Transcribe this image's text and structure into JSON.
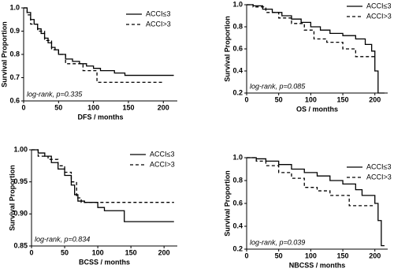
{
  "chart_data": [
    {
      "type": "step",
      "x_label": "DFS / months",
      "y_label": "Survival Proportion",
      "annotation": "log-rank, p=0.335",
      "xlim": [
        0,
        220
      ],
      "xticks": [
        0,
        50,
        100,
        150,
        200
      ],
      "ylim": [
        0.6,
        1.0
      ],
      "yticks": [
        0.6,
        0.7,
        0.8,
        0.9,
        {
          "value": 1.0,
          "label": "1.0"
        }
      ],
      "series": [
        {
          "name": "ACCI≤3",
          "color": "#000000",
          "dashed": false,
          "x": [
            0,
            5,
            10,
            15,
            20,
            25,
            30,
            35,
            40,
            45,
            50,
            60,
            70,
            80,
            90,
            100,
            110,
            130,
            145,
            215
          ],
          "values": [
            1.0,
            0.98,
            0.95,
            0.93,
            0.91,
            0.89,
            0.87,
            0.85,
            0.83,
            0.82,
            0.8,
            0.78,
            0.77,
            0.76,
            0.75,
            0.74,
            0.73,
            0.72,
            0.71,
            0.71
          ]
        },
        {
          "name": "ACCI>3",
          "color": "#000000",
          "dashed": true,
          "x": [
            0,
            5,
            10,
            20,
            30,
            40,
            50,
            60,
            75,
            85,
            105,
            200
          ],
          "values": [
            1.0,
            0.97,
            0.93,
            0.9,
            0.86,
            0.82,
            0.8,
            0.76,
            0.76,
            0.73,
            0.68,
            0.68
          ]
        }
      ]
    },
    {
      "type": "step",
      "x_label": "OS / months",
      "y_label": "Survival Proportion",
      "annotation": "log-rank, p=0.085",
      "xlim": [
        0,
        220
      ],
      "xticks": [
        0,
        50,
        100,
        150,
        200
      ],
      "ylim": [
        0.2,
        1.0
      ],
      "yticks": [
        0.2,
        0.4,
        0.6,
        0.8,
        {
          "value": 1.0,
          "label": "1.0"
        }
      ],
      "series": [
        {
          "name": "ACCI≤3",
          "color": "#000000",
          "dashed": false,
          "x": [
            0,
            10,
            25,
            40,
            55,
            70,
            85,
            100,
            115,
            130,
            150,
            170,
            185,
            195,
            200,
            205,
            215
          ],
          "values": [
            1.0,
            0.99,
            0.96,
            0.93,
            0.9,
            0.87,
            0.84,
            0.8,
            0.77,
            0.74,
            0.72,
            0.69,
            0.64,
            0.58,
            0.4,
            0.2,
            0.2
          ]
        },
        {
          "name": "ACCI>3",
          "color": "#000000",
          "dashed": true,
          "x": [
            0,
            10,
            30,
            50,
            70,
            90,
            105,
            125,
            150,
            170,
            200
          ],
          "values": [
            1.0,
            0.98,
            0.93,
            0.88,
            0.83,
            0.77,
            0.69,
            0.66,
            0.6,
            0.53,
            0.53
          ]
        }
      ]
    },
    {
      "type": "step",
      "x_label": "BCSS / months",
      "y_label": "Survival Proportion",
      "annotation": "log-rank, p=0.834",
      "xlim": [
        0,
        220
      ],
      "xticks": [
        0,
        50,
        100,
        150,
        200
      ],
      "ylim": [
        0.85,
        1.0
      ],
      "yticks": [
        {
          "value": 0.85,
          "label": "0.85"
        },
        {
          "value": 0.9,
          "label": "0.90"
        },
        {
          "value": 0.95,
          "label": "0.95"
        },
        {
          "value": 1.0,
          "label": "1.00"
        }
      ],
      "series": [
        {
          "name": "ACCI≤3",
          "color": "#000000",
          "dashed": false,
          "x": [
            0,
            10,
            20,
            30,
            40,
            50,
            60,
            65,
            70,
            80,
            100,
            110,
            140,
            215
          ],
          "values": [
            1.0,
            0.995,
            0.99,
            0.98,
            0.97,
            0.96,
            0.945,
            0.93,
            0.92,
            0.918,
            0.91,
            0.905,
            0.888,
            0.888
          ]
        },
        {
          "name": "ACCI>3",
          "color": "#000000",
          "dashed": true,
          "x": [
            0,
            10,
            25,
            40,
            50,
            60,
            68,
            75,
            215
          ],
          "values": [
            1.0,
            0.99,
            0.985,
            0.975,
            0.965,
            0.95,
            0.925,
            0.918,
            0.918
          ]
        }
      ]
    },
    {
      "type": "step",
      "x_label": "NBCSS / months",
      "y_label": "Survival Proportion",
      "annotation": "log-rank, p=0.039",
      "xlim": [
        0,
        220
      ],
      "xticks": [
        0,
        50,
        100,
        150,
        200
      ],
      "ylim": [
        0.2,
        1.0
      ],
      "yticks": [
        0.2,
        0.4,
        0.6,
        0.8,
        {
          "value": 1.0,
          "label": "1.0"
        }
      ],
      "series": [
        {
          "name": "ACCI≤3",
          "color": "#000000",
          "dashed": false,
          "x": [
            0,
            15,
            30,
            50,
            70,
            90,
            110,
            130,
            150,
            170,
            180,
            200,
            205,
            210,
            215
          ],
          "values": [
            1.0,
            0.99,
            0.97,
            0.94,
            0.9,
            0.87,
            0.84,
            0.8,
            0.77,
            0.72,
            0.67,
            0.6,
            0.45,
            0.23,
            0.23
          ]
        },
        {
          "name": "ACCI>3",
          "color": "#000000",
          "dashed": true,
          "x": [
            0,
            15,
            30,
            50,
            70,
            90,
            110,
            130,
            160,
            180,
            200
          ],
          "values": [
            1.0,
            0.97,
            0.93,
            0.87,
            0.82,
            0.74,
            0.71,
            0.67,
            0.58,
            0.58,
            0.58
          ]
        }
      ]
    }
  ]
}
